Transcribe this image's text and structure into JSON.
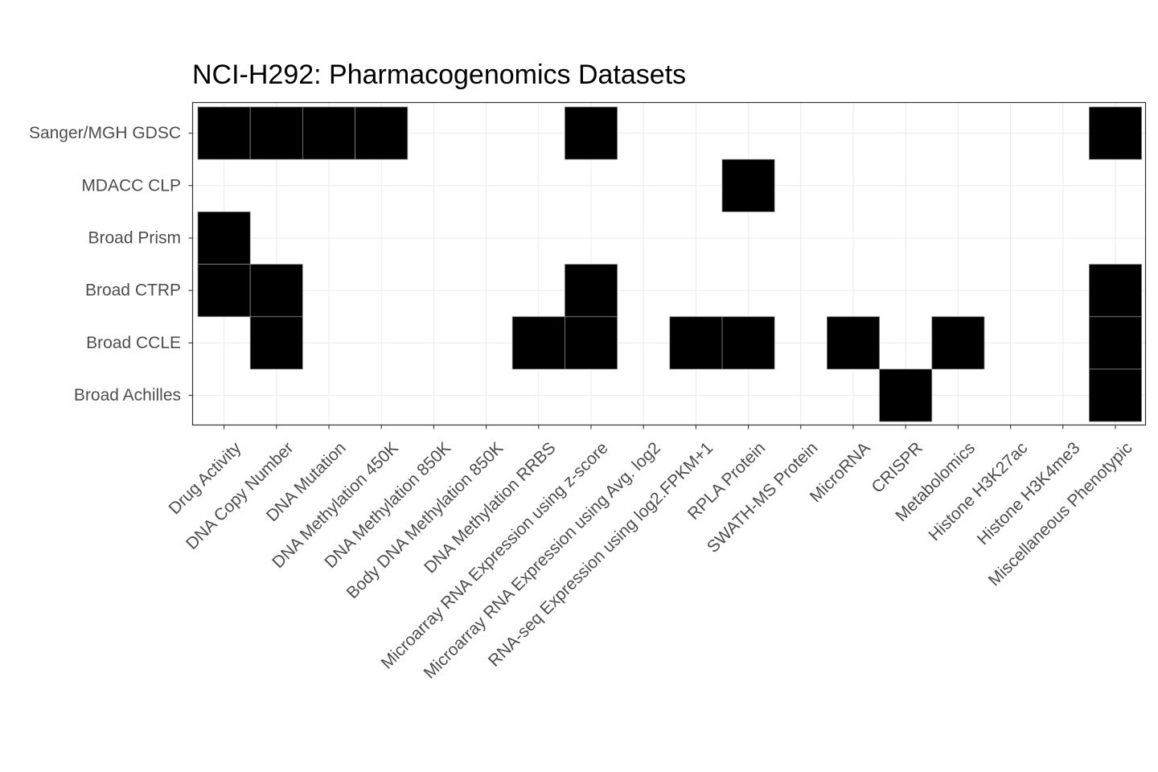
{
  "chart_data": {
    "type": "heatmap",
    "title": "NCI-H292: Pharmacogenomics Datasets",
    "xlabel": "",
    "ylabel": "",
    "grid": true,
    "legend": "none",
    "colors": {
      "filled": "#000000",
      "empty": "#ffffff",
      "tile_border": "#8a8a8a",
      "grid": "#ebebeb",
      "panel_border": "#333333",
      "tick_text": "#4d4d4d"
    },
    "rows": [
      "Sanger/MGH GDSC",
      "MDACC CLP",
      "Broad Prism",
      "Broad CTRP",
      "Broad CCLE",
      "Broad Achilles"
    ],
    "columns": [
      "Drug Activity",
      "DNA Copy Number",
      "DNA Mutation",
      "DNA Methylation 450K",
      "DNA Methylation 850K",
      "Body DNA Methylation 850K",
      "DNA Methylation RRBS",
      "Microarray RNA Expression using z-score",
      "Microarray RNA Expression using Avg. log2",
      "RNA-seq Expression using log2.FPKM+1",
      "RPLA Protein",
      "SWATH-MS Protein",
      "MicroRNA",
      "CRISPR",
      "Metabolomics",
      "Histone H3K27ac",
      "Histone H3K4me3",
      "Miscellaneous Phenotypic"
    ],
    "matrix": [
      [
        1,
        1,
        1,
        1,
        0,
        0,
        0,
        1,
        0,
        0,
        0,
        0,
        0,
        0,
        0,
        0,
        0,
        1
      ],
      [
        0,
        0,
        0,
        0,
        0,
        0,
        0,
        0,
        0,
        0,
        1,
        0,
        0,
        0,
        0,
        0,
        0,
        0
      ],
      [
        1,
        0,
        0,
        0,
        0,
        0,
        0,
        0,
        0,
        0,
        0,
        0,
        0,
        0,
        0,
        0,
        0,
        0
      ],
      [
        1,
        1,
        0,
        0,
        0,
        0,
        0,
        1,
        0,
        0,
        0,
        0,
        0,
        0,
        0,
        0,
        0,
        1
      ],
      [
        0,
        1,
        0,
        0,
        0,
        0,
        1,
        1,
        0,
        1,
        1,
        0,
        1,
        0,
        1,
        0,
        0,
        1
      ],
      [
        0,
        0,
        0,
        0,
        0,
        0,
        0,
        0,
        0,
        0,
        0,
        0,
        0,
        1,
        0,
        0,
        0,
        1
      ]
    ]
  }
}
